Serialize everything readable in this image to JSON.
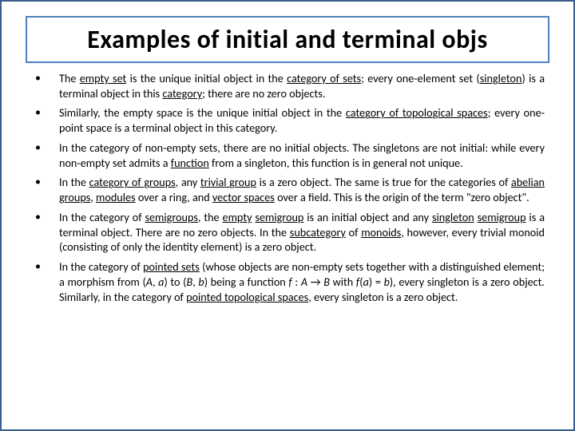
{
  "title": "Examples of initial and terminal objs",
  "bullets": [
    {
      "html": "The <span class='u'>empty set</span> is the unique initial object in the <span class='u'>category of sets</span>; every one-element set (<span class='u'>singleton</span>) is a terminal object in this <span class='u'>category</span>; there are no zero objects."
    },
    {
      "html": "Similarly, the empty space is the unique initial object in the <span class='u'>category of topological spaces</span>; every one-point space is a terminal object in this category."
    },
    {
      "html": "In the category of non-empty sets, there are no initial objects. The singletons are not initial: while every non-empty set admits a <span class='u'>function</span> from a singleton, this function is in general not unique."
    },
    {
      "html": "In the <span class='u'>category of groups</span>, any <span class='u'>trivial group</span> is a zero object. The same is true for the categories of <span class='u'>abelian groups</span>, <span class='u'>modules</span> over a ring, and <span class='u'>vector spaces</span> over a field. This is the origin of the term \"zero object\"."
    },
    {
      "html": "In the category of <span class='u'>semigroups</span>, the <span class='u'>empty</span> <span class='u'>semigroup</span> is an initial object and any <span class='u'>singleton</span> <span class='u'>semigroup</span> is a terminal object. There are no zero objects. In the <span class='u'>subcategory</span> of <span class='u'>monoids</span>, however, every trivial monoid (consisting of only the identity element) is a zero object."
    },
    {
      "html": "In the category of <span class='u'>pointed sets</span> (whose objects are non-empty sets together with a distinguished element; a morphism from (<span class='i'>A</span>, <span class='i'>a</span>) to (<span class='i'>B</span>, <span class='i'>b</span>) being a function <span class='i'>f</span> : <span class='i'>A</span> → <span class='i'>B</span> with <span class='i'>f</span>(<span class='i'>a</span>) = <span class='i'>b</span>), every singleton is a zero object. Similarly, in the category of <span class='u'>pointed topological spaces</span>, every singleton is a zero object."
    }
  ],
  "colors": {
    "slide_border": "#385d8a",
    "title_border": "#4f81bd",
    "background": "#ffffff",
    "text": "#000000"
  },
  "typography": {
    "title_fontsize": 32,
    "title_weight": 700,
    "body_fontsize": 14.2,
    "font_family": "Calibri"
  }
}
